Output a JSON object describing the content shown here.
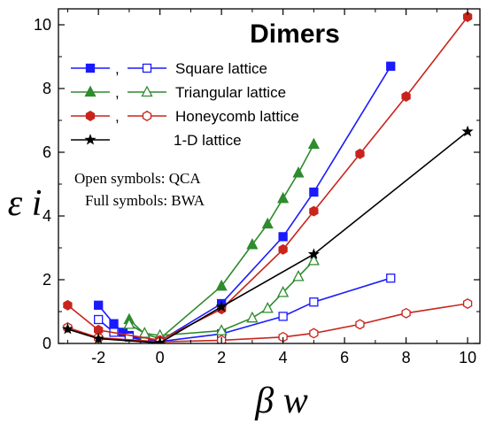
{
  "chart_data": {
    "type": "line",
    "title": "Dimers",
    "xlabel": "β w",
    "ylabel": "ε i",
    "xlim": [
      -3.3,
      10.4
    ],
    "ylim": [
      0,
      10.5
    ],
    "xticks": [
      -2,
      0,
      2,
      4,
      6,
      8,
      10
    ],
    "yticks": [
      0,
      2,
      4,
      6,
      8,
      10
    ],
    "xtick_labels": [
      "-2",
      "0",
      "2",
      "4",
      "6",
      "8",
      "10"
    ],
    "ytick_labels": [
      "0",
      "2",
      "4",
      "6",
      "8",
      "10"
    ],
    "grid": false,
    "legend_position": "top-left",
    "series": [
      {
        "name": "Square lattice",
        "method": "BWA",
        "color": "#1a1aff",
        "marker": "square",
        "filled": true,
        "x": [
          -2,
          -1.5,
          -1.2,
          -1,
          -0.5,
          0,
          2,
          4,
          5,
          7.5
        ],
        "y": [
          1.2,
          0.62,
          0.35,
          0.25,
          0.12,
          0.08,
          1.25,
          3.35,
          4.75,
          8.7
        ]
      },
      {
        "name": "Square lattice",
        "method": "QCA",
        "color": "#1a1aff",
        "marker": "square",
        "filled": false,
        "x": [
          -2,
          -1.5,
          -1,
          -0.5,
          0,
          2,
          4,
          5,
          7.5
        ],
        "y": [
          0.75,
          0.35,
          0.2,
          0.1,
          0.06,
          0.3,
          0.85,
          1.3,
          2.05
        ]
      },
      {
        "name": "Triangular lattice",
        "method": "BWA",
        "color": "#2e8b2e",
        "marker": "triangle",
        "filled": true,
        "x": [
          -1,
          -0.5,
          0,
          2,
          3,
          3.5,
          4,
          4.5,
          5
        ],
        "y": [
          0.75,
          0.3,
          0.15,
          1.8,
          3.1,
          3.75,
          4.55,
          5.35,
          6.25
        ]
      },
      {
        "name": "Triangular lattice",
        "method": "QCA",
        "color": "#2e8b2e",
        "marker": "triangle",
        "filled": false,
        "x": [
          -1,
          -0.5,
          0,
          2,
          3,
          3.5,
          4,
          4.5,
          5
        ],
        "y": [
          0.6,
          0.32,
          0.25,
          0.4,
          0.8,
          1.1,
          1.6,
          2.1,
          2.6
        ]
      },
      {
        "name": "Honeycomb lattice",
        "method": "BWA",
        "color": "#c8241c",
        "marker": "hexagon",
        "filled": true,
        "x": [
          -3,
          -2,
          0,
          2,
          4,
          5,
          6.5,
          8,
          10
        ],
        "y": [
          1.2,
          0.42,
          0.1,
          1.08,
          2.95,
          4.15,
          5.95,
          7.75,
          10.25
        ]
      },
      {
        "name": "Honeycomb lattice",
        "method": "QCA",
        "color": "#c8241c",
        "marker": "hexagon",
        "filled": false,
        "x": [
          -3,
          -2,
          0,
          2,
          4,
          5,
          6.5,
          8,
          10
        ],
        "y": [
          0.5,
          0.18,
          0.05,
          0.1,
          0.2,
          0.32,
          0.6,
          0.95,
          1.25
        ]
      },
      {
        "name": "1-D lattice",
        "method": "",
        "color": "#000000",
        "marker": "star",
        "filled": true,
        "x": [
          -3,
          -2,
          0,
          2,
          5,
          10
        ],
        "y": [
          0.45,
          0.15,
          0.02,
          1.15,
          2.8,
          6.65
        ]
      }
    ],
    "legend": [
      {
        "label": "Square lattice",
        "color": "#1a1aff",
        "marker": "square",
        "pair": true
      },
      {
        "label": "Triangular lattice",
        "color": "#2e8b2e",
        "marker": "triangle",
        "pair": true
      },
      {
        "label": "Honeycomb lattice",
        "color": "#c8241c",
        "marker": "hexagon",
        "pair": true
      },
      {
        "label": "1-D lattice",
        "color": "#000000",
        "marker": "star",
        "pair": false
      }
    ],
    "annotations": {
      "open_symbols": "Open symbols: QCA",
      "full_symbols": "Full symbols: BWA"
    }
  }
}
